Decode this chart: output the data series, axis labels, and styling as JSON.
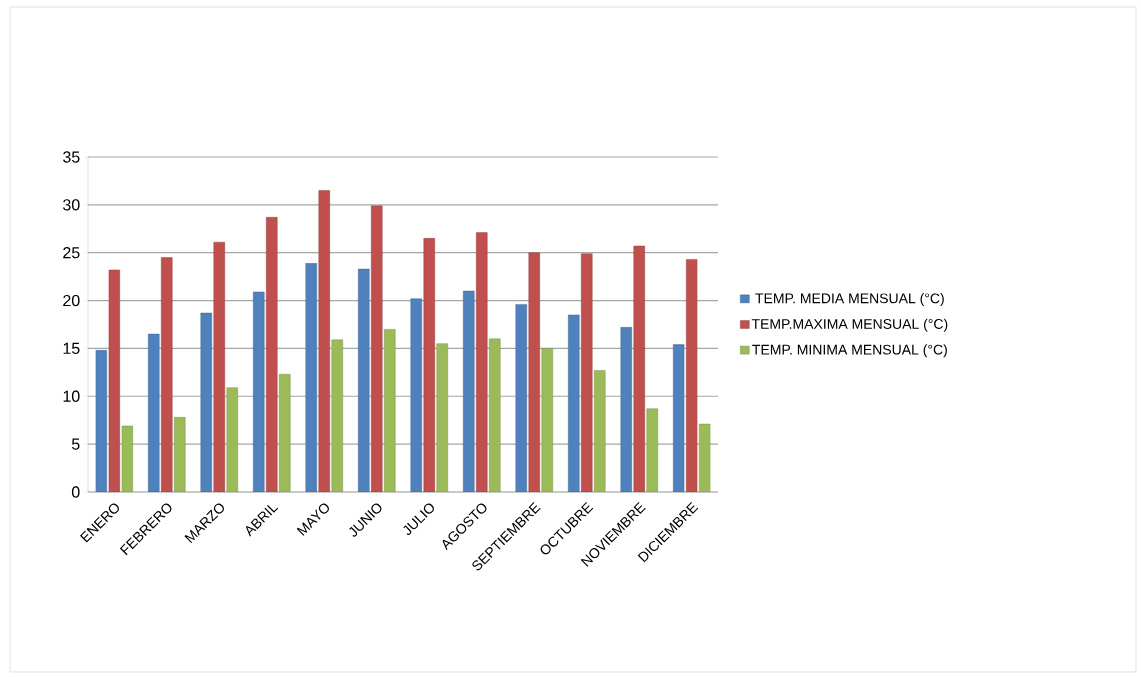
{
  "chart_data": {
    "type": "bar",
    "categories": [
      "ENERO",
      "FEBRERO",
      "MARZO",
      "ABRIL",
      "MAYO",
      "JUNIO",
      "JULIO",
      "AGOSTO",
      "SEPTIEMBRE",
      "OCTUBRE",
      "NOVIEMBRE",
      "DICIEMBRE"
    ],
    "series": [
      {
        "name": "TEMP. MEDIA MENSUAL (°C)",
        "color": "#4f81bd",
        "values": [
          14.8,
          16.5,
          18.7,
          20.9,
          23.9,
          23.3,
          20.2,
          21.0,
          19.6,
          18.5,
          17.2,
          15.4
        ]
      },
      {
        "name": "TEMP.MAXIMA MENSUAL (°C)",
        "color": "#c0504d",
        "values": [
          23.2,
          24.5,
          26.1,
          28.7,
          31.5,
          29.9,
          26.5,
          27.1,
          25.0,
          24.9,
          25.7,
          24.3
        ]
      },
      {
        "name": "TEMP. MINIMA MENSUAL (°C)",
        "color": "#9bbb59",
        "values": [
          6.9,
          7.8,
          10.9,
          12.3,
          15.9,
          17.0,
          15.5,
          16.0,
          15.0,
          12.7,
          8.7,
          7.1
        ]
      }
    ],
    "ylim": [
      0,
      35
    ],
    "yticks": [
      0,
      5,
      10,
      15,
      20,
      25,
      30,
      35
    ],
    "grid": "y",
    "legend": "right"
  }
}
